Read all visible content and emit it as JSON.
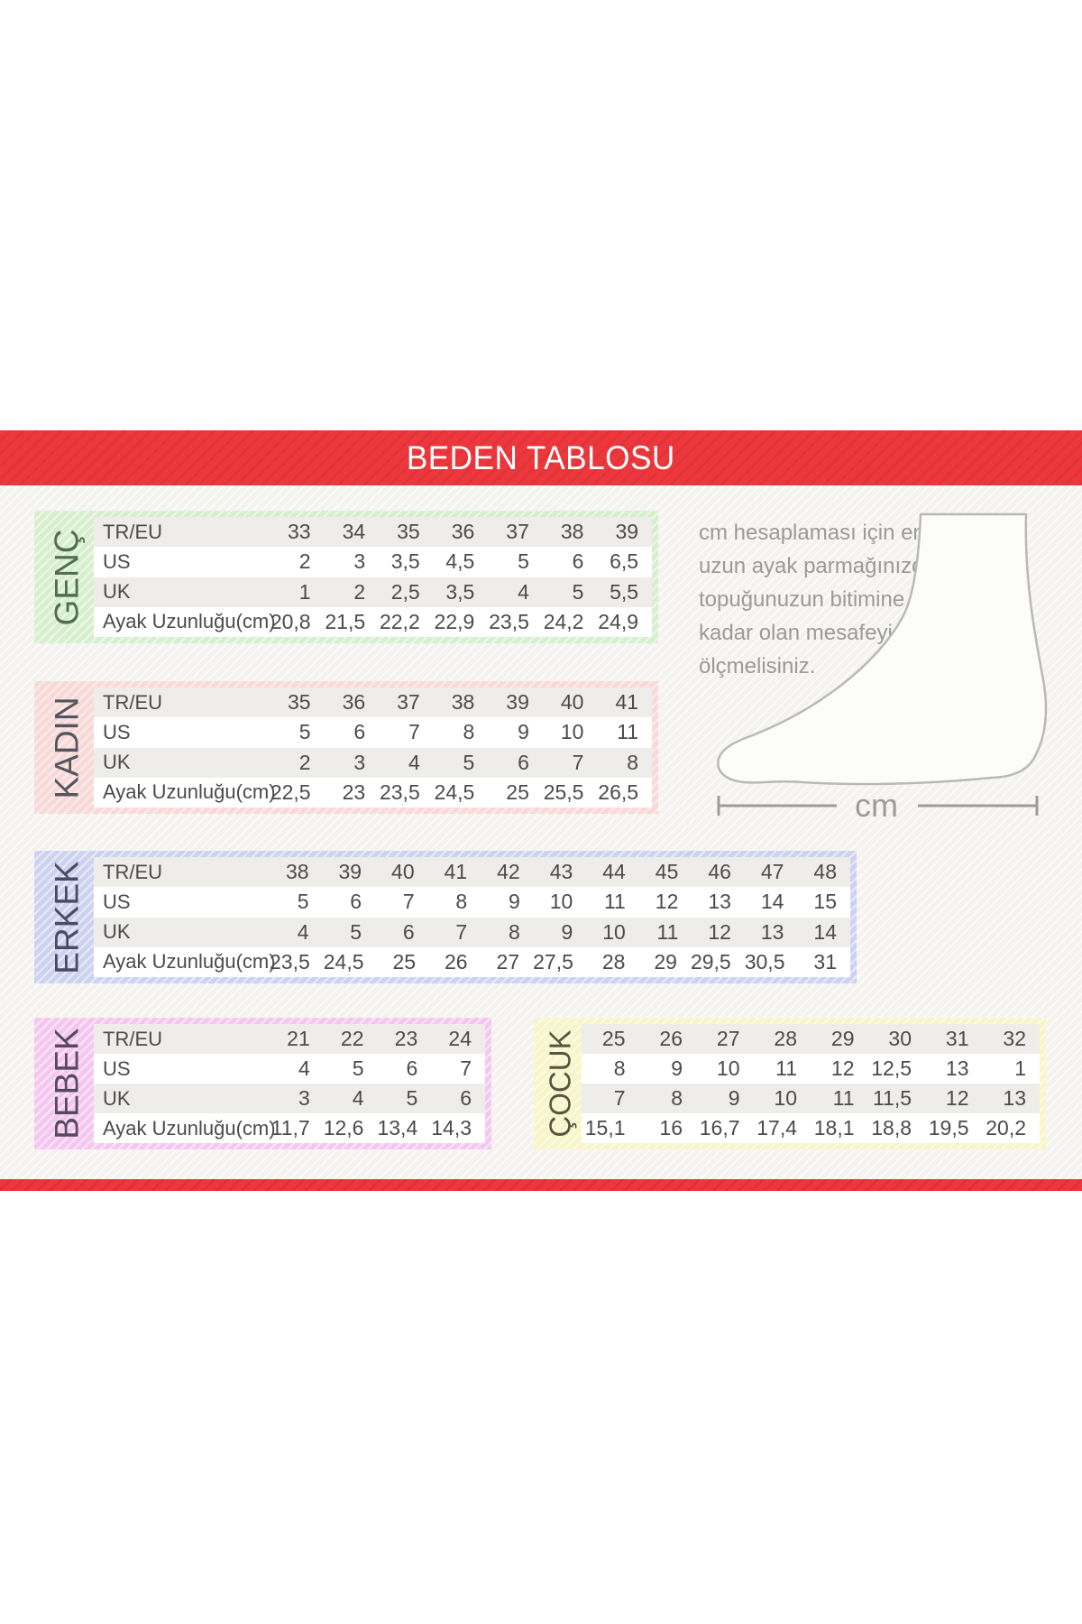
{
  "title": "BEDEN TABLOSU",
  "theme": {
    "banner_color": "#ee373d",
    "table_text_color": "#4b4b4b",
    "row_alt_color": "#eeedea",
    "instruction_text_color": "#9a9a9a",
    "foot_outline_color": "#b9b9b9"
  },
  "row_headers": [
    "TR/EU",
    "US",
    "UK",
    "Ayak Uzunluğu(cm)"
  ],
  "tables": {
    "genc": {
      "label": "GENÇ",
      "band_color": "#d8efcd",
      "label_color": "#4f6f51",
      "show_headers": true,
      "rows": [
        [
          "33",
          "34",
          "35",
          "36",
          "37",
          "38",
          "39"
        ],
        [
          "2",
          "3",
          "3,5",
          "4,5",
          "5",
          "6",
          "6,5"
        ],
        [
          "1",
          "2",
          "2,5",
          "3,5",
          "4",
          "5",
          "5,5"
        ],
        [
          "20,8",
          "21,5",
          "22,2",
          "22,9",
          "23,5",
          "24,2",
          "24,9"
        ]
      ]
    },
    "kadin": {
      "label": "KADIN",
      "band_color": "#f9d8d8",
      "label_color": "#54555d",
      "show_headers": true,
      "rows": [
        [
          "35",
          "36",
          "37",
          "38",
          "39",
          "40",
          "41"
        ],
        [
          "5",
          "6",
          "7",
          "8",
          "9",
          "10",
          "11"
        ],
        [
          "2",
          "3",
          "4",
          "5",
          "6",
          "7",
          "8"
        ],
        [
          "22,5",
          "23",
          "23,5",
          "24,5",
          "25",
          "25,5",
          "26,5"
        ]
      ]
    },
    "erkek": {
      "label": "ERKEK",
      "band_color": "#ccd2f0",
      "label_color": "#474b63",
      "show_headers": true,
      "rows": [
        [
          "38",
          "39",
          "40",
          "41",
          "42",
          "43",
          "44",
          "45",
          "46",
          "47",
          "48"
        ],
        [
          "5",
          "6",
          "7",
          "8",
          "9",
          "10",
          "11",
          "12",
          "13",
          "14",
          "15"
        ],
        [
          "4",
          "5",
          "6",
          "7",
          "8",
          "9",
          "10",
          "11",
          "12",
          "13",
          "14"
        ],
        [
          "23,5",
          "24,5",
          "25",
          "26",
          "27",
          "27,5",
          "28",
          "29",
          "29,5",
          "30,5",
          "31"
        ]
      ]
    },
    "bebek": {
      "label": "BEBEK",
      "band_color": "#f5c7f0",
      "label_color": "#564a5c",
      "show_headers": true,
      "rows": [
        [
          "21",
          "22",
          "23",
          "24"
        ],
        [
          "4",
          "5",
          "6",
          "7"
        ],
        [
          "3",
          "4",
          "5",
          "6"
        ],
        [
          "11,7",
          "12,6",
          "13,4",
          "14,3"
        ]
      ]
    },
    "cocuk": {
      "label": "ÇOCUK",
      "band_color": "#f8f5c8",
      "label_color": "#56553f",
      "show_headers": false,
      "rows": [
        [
          "25",
          "26",
          "27",
          "28",
          "29",
          "30",
          "31",
          "32"
        ],
        [
          "8",
          "9",
          "10",
          "11",
          "12",
          "12,5",
          "13",
          "1"
        ],
        [
          "7",
          "8",
          "9",
          "10",
          "11",
          "11,5",
          "12",
          "13"
        ],
        [
          "15,1",
          "16",
          "16,7",
          "17,4",
          "18,1",
          "18,8",
          "19,5",
          "20,2"
        ]
      ]
    }
  },
  "instruction": {
    "lines": [
      "cm hesaplaması için en",
      "uzun ayak parmağınızdan",
      "topuğunuzun bitimine",
      "kadar olan mesafeyi",
      "ölçmelisiniz."
    ],
    "unit_label": "cm"
  }
}
